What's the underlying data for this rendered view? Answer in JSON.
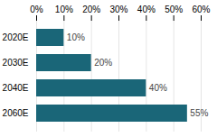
{
  "chart_data": {
    "type": "bar",
    "orientation": "horizontal",
    "categories": [
      "2020E",
      "2030E",
      "2040E",
      "2060E"
    ],
    "values": [
      10,
      20,
      40,
      55
    ],
    "value_labels": [
      "10%",
      "20%",
      "40%",
      "55%"
    ],
    "data_labels": true,
    "color": "#1a6678",
    "xlim": [
      0,
      60
    ],
    "xticks": [
      {
        "value": 0,
        "label": "0%"
      },
      {
        "value": 10,
        "label": "10%"
      },
      {
        "value": 20,
        "label": "20%"
      },
      {
        "value": 30,
        "label": "30%"
      },
      {
        "value": 40,
        "label": "40%"
      },
      {
        "value": 50,
        "label": "50%"
      },
      {
        "value": 60,
        "label": "60%"
      }
    ],
    "grid": true
  }
}
